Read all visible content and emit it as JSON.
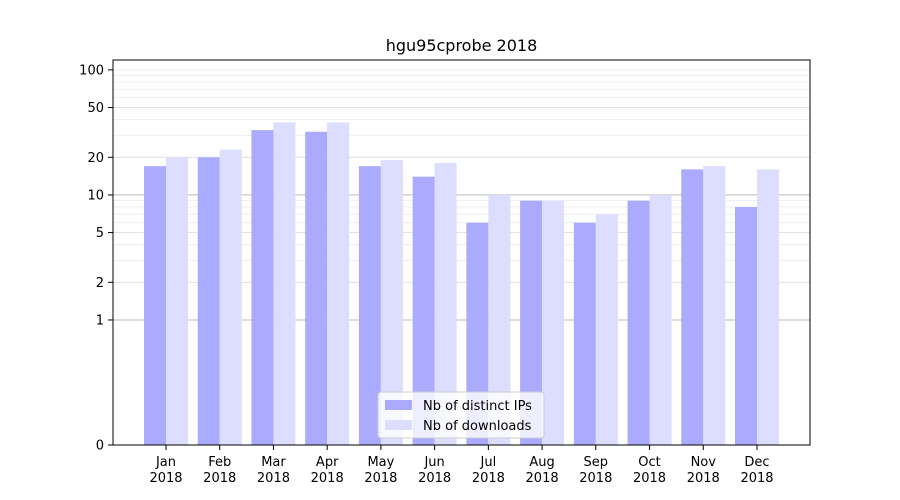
{
  "chart_data": {
    "type": "bar",
    "title": "hgu95cprobe 2018",
    "xlabel": "",
    "ylabel": "",
    "y_scale": "symlog",
    "ylim": [
      0,
      120
    ],
    "y_ticks": [
      0,
      1,
      2,
      5,
      10,
      20,
      50,
      100
    ],
    "y_tick_labels": [
      "0",
      "1",
      "2",
      "5",
      "10",
      "20",
      "50",
      "100"
    ],
    "grid": true,
    "legend_position": "bottom-center",
    "categories": [
      {
        "month": "Jan",
        "year": "2018"
      },
      {
        "month": "Feb",
        "year": "2018"
      },
      {
        "month": "Mar",
        "year": "2018"
      },
      {
        "month": "Apr",
        "year": "2018"
      },
      {
        "month": "May",
        "year": "2018"
      },
      {
        "month": "Jun",
        "year": "2018"
      },
      {
        "month": "Jul",
        "year": "2018"
      },
      {
        "month": "Aug",
        "year": "2018"
      },
      {
        "month": "Sep",
        "year": "2018"
      },
      {
        "month": "Oct",
        "year": "2018"
      },
      {
        "month": "Nov",
        "year": "2018"
      },
      {
        "month": "Dec",
        "year": "2018"
      }
    ],
    "series": [
      {
        "name": "Nb of distinct IPs",
        "color": "#aaaaff",
        "values": [
          17,
          20,
          33,
          32,
          17,
          14,
          6,
          9,
          6,
          9,
          16,
          8
        ]
      },
      {
        "name": "Nb of downloads",
        "color": "#ddddff",
        "values": [
          20,
          23,
          38,
          38,
          19,
          18,
          10,
          9,
          7,
          10,
          17,
          16
        ]
      }
    ]
  }
}
